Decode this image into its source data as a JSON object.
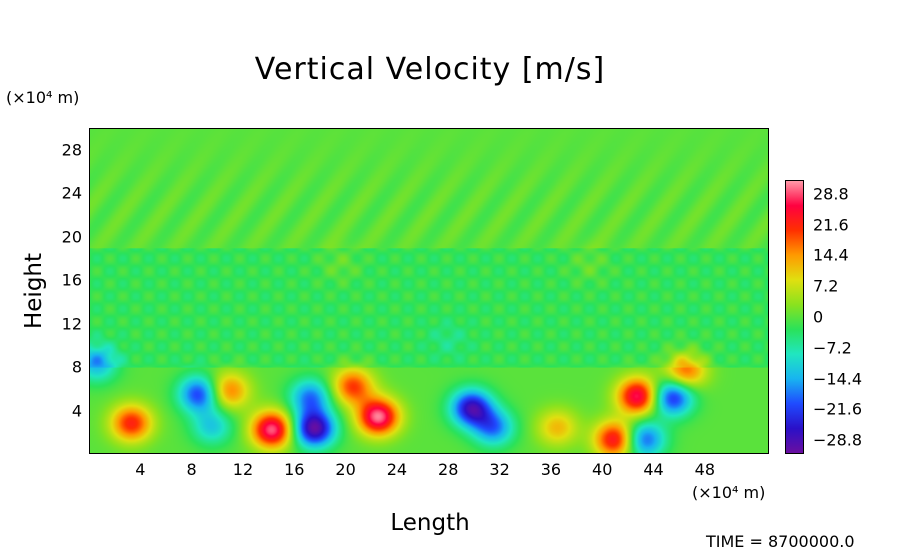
{
  "chart_data": {
    "type": "heatmap",
    "title": "Vertical Velocity [m/s]",
    "xlabel": "Length",
    "ylabel": "Height",
    "x_unit": "(×10⁴ m)",
    "y_unit": "(×10⁴ m)",
    "xlim": [
      0,
      53
    ],
    "ylim": [
      0,
      30
    ],
    "x_ticks": [
      "4",
      "8",
      "12",
      "16",
      "20",
      "24",
      "28",
      "32",
      "36",
      "40",
      "44",
      "48"
    ],
    "x_tick_values": [
      4,
      8,
      12,
      16,
      20,
      24,
      28,
      32,
      36,
      40,
      44,
      48
    ],
    "y_ticks": [
      "4",
      "8",
      "12",
      "16",
      "20",
      "24",
      "28"
    ],
    "y_tick_values": [
      4,
      8,
      12,
      16,
      20,
      24,
      28
    ],
    "colorbar": {
      "labels": [
        "28.8",
        "21.6",
        "14.4",
        "7.2",
        "0",
        "−7.2",
        "−14.4",
        "−21.6",
        "−28.8"
      ],
      "values": [
        28.8,
        21.6,
        14.4,
        7.2,
        0,
        -7.2,
        -14.4,
        -21.6,
        -28.8
      ],
      "range": [
        -32,
        32
      ],
      "colors": [
        "#6a0fa0",
        "#2a10c8",
        "#1f4bff",
        "#18b4f0",
        "#20e6c0",
        "#2ae25a",
        "#8ae21e",
        "#e0e010",
        "#ff9a00",
        "#ff3000",
        "#ff0040",
        "#ff9aa8"
      ]
    },
    "cells": [
      {
        "x": 3.2,
        "y": 2.8,
        "value": 22
      },
      {
        "x": 8.5,
        "y": 5.5,
        "value": -22
      },
      {
        "x": 9.5,
        "y": 2.5,
        "value": -12
      },
      {
        "x": 10.8,
        "y": 5.8,
        "value": 17
      },
      {
        "x": 14.2,
        "y": 2.2,
        "value": 30
      },
      {
        "x": 17.5,
        "y": 2.3,
        "value": -31
      },
      {
        "x": 17.2,
        "y": 5.2,
        "value": -18
      },
      {
        "x": 22.5,
        "y": 3.4,
        "value": 31
      },
      {
        "x": 20.5,
        "y": 6.2,
        "value": 20
      },
      {
        "x": 29.8,
        "y": 4.2,
        "value": -28
      },
      {
        "x": 31.5,
        "y": 2.4,
        "value": -18
      },
      {
        "x": 36.5,
        "y": 2.4,
        "value": 12
      },
      {
        "x": 41,
        "y": 1.3,
        "value": 25
      },
      {
        "x": 42.8,
        "y": 5.3,
        "value": 28
      },
      {
        "x": 43.3,
        "y": 1.3,
        "value": -20
      },
      {
        "x": 45.5,
        "y": 5.2,
        "value": -24
      },
      {
        "x": 46.5,
        "y": 7.6,
        "value": 18
      },
      {
        "x": 0.5,
        "y": 8.3,
        "value": -14
      },
      {
        "x": 19.5,
        "y": 17.5,
        "value": 3
      },
      {
        "x": 39,
        "y": 17.5,
        "value": 3
      },
      {
        "x": 28,
        "y": 10.5,
        "value": -3
      }
    ],
    "time_label": "TIME = 8700000.0"
  }
}
